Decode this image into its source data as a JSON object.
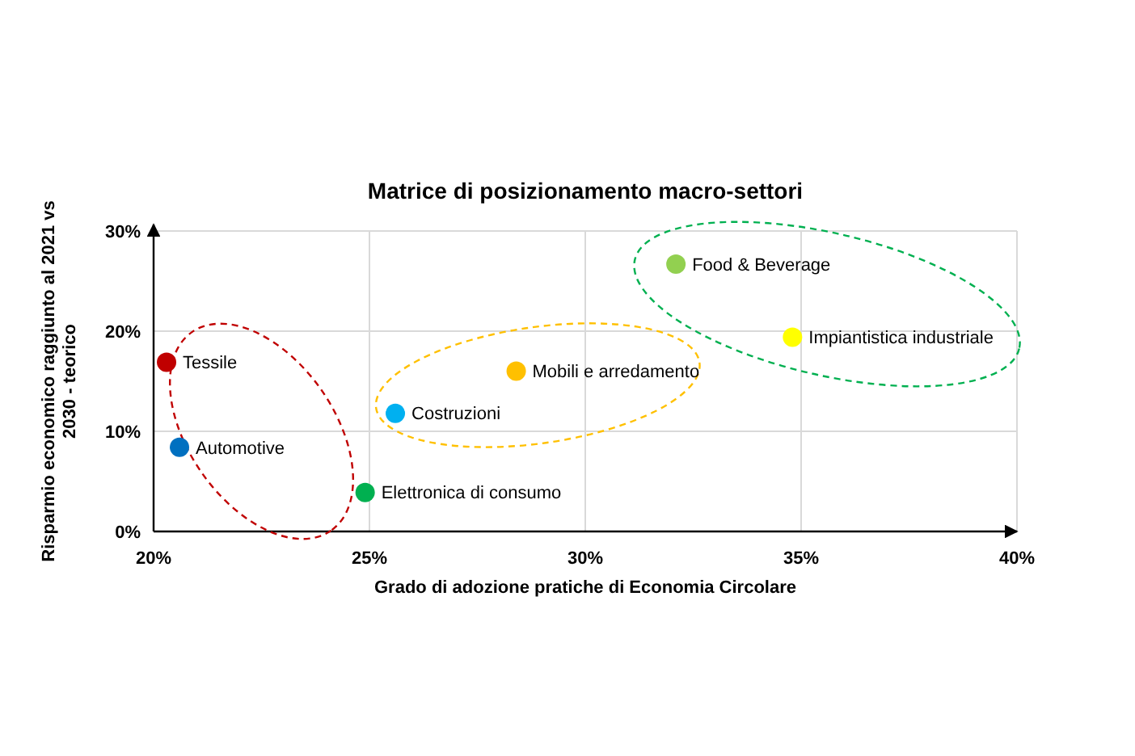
{
  "chart_data": {
    "type": "scatter",
    "title": "Matrice di posizionamento macro-settori",
    "xlabel": "Grado di adozione pratiche di Economia Circolare",
    "ylabel": "Risparmio economico raggiunto al 2021 vs\n2030 - teorico",
    "xlim": [
      20,
      40
    ],
    "xticks": [
      {
        "value": 20,
        "label": "20%"
      },
      {
        "value": 25,
        "label": "25%"
      },
      {
        "value": 30,
        "label": "30%"
      },
      {
        "value": 35,
        "label": "35%"
      },
      {
        "value": 40,
        "label": "40%"
      }
    ],
    "ylim": [
      0,
      30
    ],
    "yticks": [
      {
        "value": 0,
        "label": "0%"
      },
      {
        "value": 10,
        "label": "10%"
      },
      {
        "value": 20,
        "label": "20%"
      },
      {
        "value": 30,
        "label": "30%"
      }
    ],
    "grid": true,
    "marker": "circle",
    "series": [
      {
        "name": "Tessile",
        "color": "#c00000",
        "x": [
          20.3
        ],
        "values": [
          16.9
        ]
      },
      {
        "name": "Automotive",
        "color": "#0070c0",
        "x": [
          20.6
        ],
        "values": [
          8.4
        ]
      },
      {
        "name": "Elettronica di consumo",
        "color": "#00b050",
        "x": [
          24.9
        ],
        "values": [
          3.9
        ]
      },
      {
        "name": "Costruzioni",
        "color": "#00b0f0",
        "x": [
          25.6
        ],
        "values": [
          11.8
        ]
      },
      {
        "name": "Mobili e arredamento",
        "color": "#ffc000",
        "x": [
          28.4
        ],
        "values": [
          16.0
        ]
      },
      {
        "name": "Food & Beverage",
        "color": "#92d050",
        "x": [
          32.1
        ],
        "values": [
          26.7
        ]
      },
      {
        "name": "Impiantistica industriale",
        "color": "#ffff00",
        "x": [
          34.8
        ],
        "values": [
          19.4
        ]
      }
    ]
  }
}
